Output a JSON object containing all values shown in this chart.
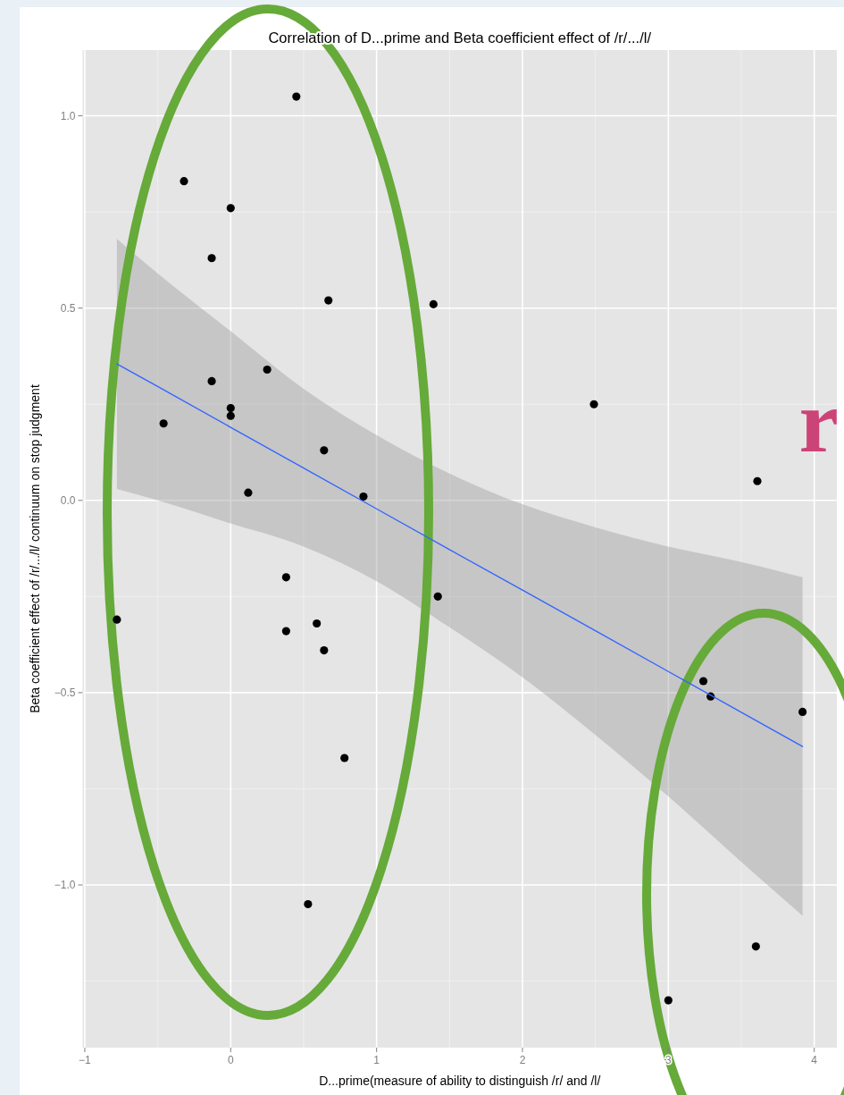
{
  "chart_data": {
    "type": "scatter",
    "title": "Correlation of D...prime and Beta coefficient effect of /r/.../l/",
    "xlabel": "D...prime(measure of ability to distinguish /r/ and /l/",
    "ylabel": "Beta coefficient effect of /r/.../l/ continuum on stop judgment",
    "series": [
      {
        "color": "#000000",
        "marker": "circle",
        "x": [
          0.45,
          -0.32,
          0.0,
          -0.13,
          0.67,
          1.39,
          -0.13,
          0.25,
          -0.46,
          0.0,
          0.0,
          0.64,
          0.12,
          0.91,
          2.49,
          3.61,
          -0.78,
          0.38,
          0.38,
          0.59,
          0.64,
          1.42,
          0.78,
          0.53,
          3.24,
          3.29,
          3.92,
          3.6,
          3.0
        ],
        "values": [
          1.05,
          0.83,
          0.76,
          0.63,
          0.52,
          0.51,
          0.31,
          0.34,
          0.2,
          0.24,
          0.22,
          0.13,
          0.02,
          0.01,
          0.25,
          0.05,
          -0.31,
          -0.2,
          -0.34,
          -0.32,
          -0.39,
          -0.25,
          -0.67,
          -1.05,
          -0.47,
          -0.51,
          -0.55,
          -1.16,
          -1.3
        ]
      },
      {
        "type": "line",
        "color": "#3366ff",
        "x": [
          -0.78,
          -0.5,
          0,
          0.5,
          1,
          1.5,
          2,
          2.5,
          3,
          3.5,
          3.92
        ],
        "values": [
          0.355,
          0.296,
          0.19,
          0.084,
          -0.022,
          -0.128,
          -0.233,
          -0.339,
          -0.445,
          -0.551,
          -0.64
        ],
        "lower": [
          0.03,
          0.0,
          -0.06,
          -0.12,
          -0.21,
          -0.33,
          -0.46,
          -0.61,
          -0.77,
          -0.94,
          -1.08
        ],
        "upper": [
          0.68,
          0.59,
          0.44,
          0.29,
          0.17,
          0.07,
          -0.01,
          -0.07,
          -0.12,
          -0.16,
          -0.2
        ]
      }
    ],
    "xlim": [
      -1.015,
      4.155
    ],
    "ylim": [
      -1.423,
      1.171
    ],
    "xticks": [
      {
        "value": -1,
        "label": "−1"
      },
      {
        "value": 0,
        "label": "0"
      },
      {
        "value": 1,
        "label": "1"
      },
      {
        "value": 2,
        "label": "2"
      },
      {
        "value": 3,
        "label": "3"
      },
      {
        "value": 4,
        "label": "4"
      }
    ],
    "yticks": [
      {
        "value": -1,
        "label": "−1.0"
      },
      {
        "value": -0.5,
        "label": "−0.5"
      },
      {
        "value": 0,
        "label": "0.0"
      },
      {
        "value": 0.5,
        "label": "0.5"
      },
      {
        "value": 1,
        "label": "1.0"
      }
    ],
    "grid": true,
    "annotations": [
      "r"
    ]
  }
}
